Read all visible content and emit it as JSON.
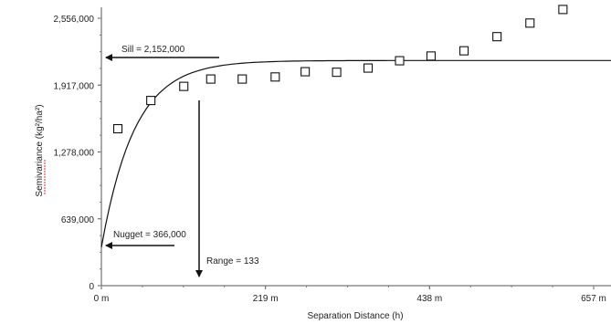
{
  "chart_data": {
    "type": "scatter",
    "title": "",
    "xlabel": "Separation Distance (h)",
    "ylabel": "Semivariance (kg²/ha²)",
    "xlim": [
      0,
      657
    ],
    "ylim": [
      0,
      2556000
    ],
    "x_ticks": [
      {
        "value": 0,
        "label": "0 m"
      },
      {
        "value": 219,
        "label": "219 m"
      },
      {
        "value": 438,
        "label": "438 m"
      },
      {
        "value": 657,
        "label": "657 m"
      }
    ],
    "y_ticks": [
      {
        "value": 0,
        "label": "0"
      },
      {
        "value": 639000,
        "label": "639,000"
      },
      {
        "value": 1278000,
        "label": "1,278,000"
      },
      {
        "value": 1917000,
        "label": "1,917,000"
      },
      {
        "value": 2556000,
        "label": "2,556,000"
      }
    ],
    "grid": false,
    "points": {
      "marker": "square",
      "x": [
        22,
        66,
        110,
        146,
        188,
        232,
        272,
        314,
        356,
        398,
        440,
        484,
        528,
        572,
        616
      ],
      "y": [
        1500000,
        1770000,
        1905000,
        1975000,
        1975000,
        1995000,
        2045000,
        2040000,
        2080000,
        2150000,
        2195000,
        2245000,
        2380000,
        2510000,
        2640000
      ]
    },
    "model": {
      "type": "spherical",
      "nugget": 366000,
      "sill": 2152000,
      "range": 133
    },
    "annotations": {
      "sill": "Sill = 2,152,000",
      "nugget": "Nugget = 366,000",
      "range": "Range = 133"
    }
  }
}
